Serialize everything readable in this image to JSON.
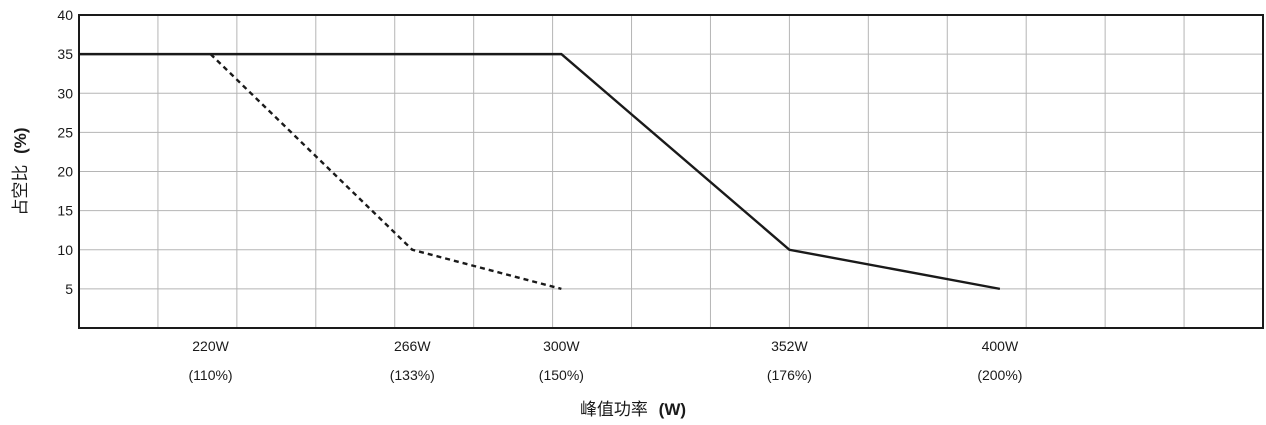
{
  "chart_data": {
    "type": "line",
    "xlabel": "峰值功率",
    "xlabel_unit": "(W)",
    "ylabel": "占空比",
    "ylabel_unit": "(%)",
    "ylim": [
      0,
      40
    ],
    "xlim": [
      190,
      460
    ],
    "y_ticks": [
      5,
      10,
      15,
      20,
      25,
      30,
      35,
      40
    ],
    "x_ticks": [
      {
        "x": 220,
        "line1": "220W",
        "line2": "(110%)"
      },
      {
        "x": 266,
        "line1": "266W",
        "line2": "(133%)"
      },
      {
        "x": 300,
        "line1": "300W",
        "line2": "(150%)"
      },
      {
        "x": 352,
        "line1": "352W",
        "line2": "(176%)"
      },
      {
        "x": 400,
        "line1": "400W",
        "line2": "(200%)"
      }
    ],
    "grid": true,
    "series": [
      {
        "style": "solid",
        "color": "#1a1a1a",
        "points": [
          [
            190,
            35
          ],
          [
            300,
            35
          ],
          [
            352,
            10
          ],
          [
            400,
            5
          ]
        ]
      },
      {
        "style": "dashed",
        "color": "#1a1a1a",
        "points": [
          [
            220,
            35
          ],
          [
            266,
            10
          ],
          [
            300,
            5
          ]
        ]
      }
    ]
  }
}
